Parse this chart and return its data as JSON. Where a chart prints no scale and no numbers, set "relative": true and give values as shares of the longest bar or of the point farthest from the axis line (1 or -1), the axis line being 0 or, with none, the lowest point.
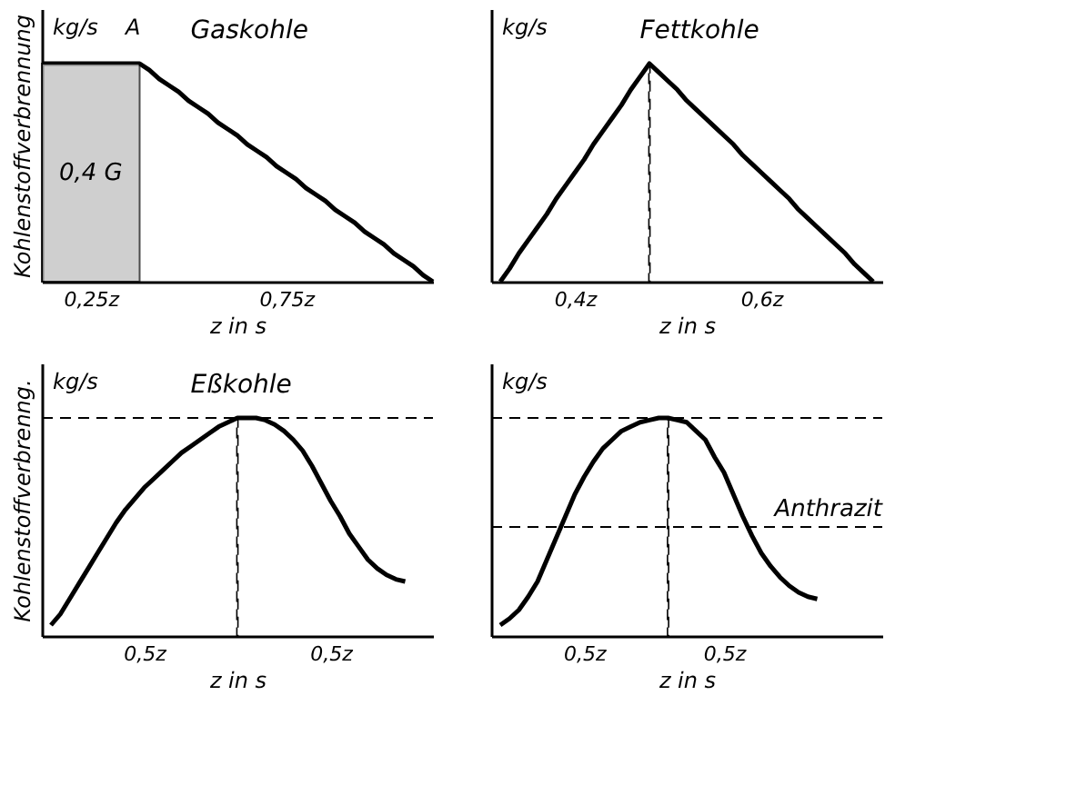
{
  "chart_data": [
    {
      "type": "line",
      "title": "Gaskohle",
      "ylabel": "Kohlenstoffverbrennung",
      "xlabel": "z in s",
      "relative": true,
      "grid": false,
      "categories": [
        null,
        null,
        null,
        null,
        null,
        "0,25z",
        null,
        null,
        null,
        null,
        null,
        null,
        null,
        null,
        null,
        null,
        null,
        null,
        null,
        null,
        null,
        null,
        null,
        null,
        null,
        "0,75z",
        null,
        null,
        null,
        null,
        null,
        null,
        null,
        null,
        null,
        null,
        null,
        null,
        null,
        null,
        null
      ],
      "series": [
        {
          "color": "#000000",
          "values": [
            1,
            1,
            1,
            1,
            1,
            1,
            1,
            1,
            1,
            1,
            1,
            0.97,
            0.93,
            0.9,
            0.87,
            0.83,
            0.8,
            0.77,
            0.73,
            0.7,
            0.67,
            0.63,
            0.6,
            0.57,
            0.53,
            0.5,
            0.47,
            0.43,
            0.4,
            0.37,
            0.33,
            0.3,
            0.27,
            0.23,
            0.2,
            0.17,
            0.13,
            0.1,
            0.07,
            0.03,
            0
          ]
        },
        {
          "type": "area",
          "name": "0,4 G",
          "color": "#bbbbbb",
          "values": [
            1,
            1,
            1,
            1,
            1,
            1,
            1,
            1,
            1,
            1,
            1,
            null,
            null,
            null,
            null,
            null,
            null,
            null,
            null,
            null,
            null,
            null,
            null,
            null,
            null,
            null,
            null,
            null,
            null,
            null,
            null,
            null,
            null,
            null,
            null,
            null,
            null,
            null,
            null,
            null,
            null
          ]
        }
      ],
      "annotations": [
        "kg/s",
        "A"
      ]
    },
    {
      "type": "line",
      "title": "Fettkohle",
      "xlabel": "z in s",
      "relative": true,
      "grid": false,
      "categories": [
        null,
        null,
        null,
        null,
        null,
        null,
        null,
        null,
        "0,4z",
        null,
        null,
        null,
        null,
        null,
        null,
        null,
        null,
        null,
        null,
        null,
        null,
        null,
        null,
        null,
        null,
        null,
        null,
        null,
        "0,6z",
        null,
        null,
        null,
        null,
        null,
        null,
        null,
        null,
        null,
        null,
        null,
        null
      ],
      "series": [
        {
          "color": "#000000",
          "values": [
            0,
            0.06,
            0.13,
            0.19,
            0.25,
            0.31,
            0.38,
            0.44,
            0.5,
            0.56,
            0.63,
            0.69,
            0.75,
            0.81,
            0.88,
            0.94,
            1,
            0.96,
            0.92,
            0.88,
            0.83,
            0.79,
            0.75,
            0.71,
            0.67,
            0.63,
            0.58,
            0.54,
            0.5,
            0.46,
            0.42,
            0.38,
            0.33,
            0.29,
            0.25,
            0.21,
            0.17,
            0.13,
            0.08,
            0.04,
            0
          ]
        },
        {
          "type": "bar",
          "line_style": "dashed",
          "color": "#000000",
          "values": [
            null,
            null,
            null,
            null,
            null,
            null,
            null,
            null,
            null,
            null,
            null,
            null,
            null,
            null,
            null,
            null,
            1,
            null,
            null,
            null,
            null,
            null,
            null,
            null,
            null,
            null,
            null,
            null,
            null,
            null,
            null,
            null,
            null,
            null,
            null,
            null,
            null,
            null,
            null,
            null,
            null
          ]
        }
      ],
      "annotations": [
        "kg/s"
      ]
    },
    {
      "type": "line",
      "title": "Eßkohle",
      "ylabel": "Kohlenstoffverbrenng.",
      "xlabel": "z in s",
      "relative": true,
      "grid": false,
      "categories": [
        null,
        null,
        null,
        null,
        null,
        null,
        null,
        null,
        null,
        null,
        "0,5z",
        null,
        null,
        null,
        null,
        null,
        null,
        null,
        null,
        null,
        null,
        null,
        null,
        null,
        null,
        null,
        null,
        null,
        null,
        null,
        "0,5z",
        null,
        null,
        null,
        null,
        null,
        null,
        null,
        null,
        null,
        null
      ],
      "series": [
        {
          "color": "#000000",
          "values": [
            0.05,
            0.1,
            0.17,
            0.24,
            0.31,
            0.38,
            0.45,
            0.52,
            0.58,
            0.63,
            0.68,
            0.72,
            0.76,
            0.8,
            0.84,
            0.87,
            0.9,
            0.93,
            0.96,
            0.98,
            1,
            1,
            1,
            0.99,
            0.97,
            0.94,
            0.9,
            0.85,
            0.78,
            0.7,
            0.62,
            0.55,
            0.47,
            0.41,
            0.35,
            0.31,
            0.28,
            0.26,
            0.25,
            null,
            null
          ]
        },
        {
          "type": "bar",
          "line_style": "dashed",
          "color": "#000000",
          "values": [
            null,
            null,
            null,
            null,
            null,
            null,
            null,
            null,
            null,
            null,
            null,
            null,
            null,
            null,
            null,
            null,
            null,
            null,
            null,
            null,
            1,
            null,
            null,
            null,
            null,
            null,
            null,
            null,
            null,
            null,
            null,
            null,
            null,
            null,
            null,
            null,
            null,
            null,
            null,
            null,
            null
          ]
        }
      ],
      "ref_lines": [
        {
          "axis": "y",
          "value": 1,
          "line_style": "dashed"
        }
      ],
      "annotations": [
        "kg/s"
      ]
    },
    {
      "type": "line",
      "xlabel": "z in s",
      "relative": true,
      "grid": false,
      "categories": [
        null,
        null,
        null,
        null,
        null,
        null,
        null,
        null,
        null,
        "0,5z",
        null,
        null,
        null,
        null,
        null,
        null,
        null,
        null,
        null,
        null,
        null,
        null,
        null,
        null,
        "0,5z",
        null,
        null,
        null,
        null,
        null,
        null,
        null,
        null,
        null,
        null,
        null,
        null,
        null,
        null,
        null,
        null
      ],
      "series": [
        {
          "color": "#000000",
          "values": [
            0.05,
            0.08,
            0.12,
            0.18,
            0.25,
            0.35,
            0.45,
            0.55,
            0.65,
            0.73,
            0.8,
            0.86,
            0.9,
            0.94,
            0.96,
            0.98,
            0.99,
            1,
            1,
            0.99,
            0.98,
            0.94,
            0.9,
            0.82,
            0.75,
            0.65,
            0.55,
            0.46,
            0.38,
            0.32,
            0.27,
            0.23,
            0.2,
            0.18,
            0.17,
            null,
            null,
            null,
            null,
            null,
            null
          ]
        },
        {
          "type": "bar",
          "line_style": "dashed",
          "color": "#000000",
          "values": [
            null,
            null,
            null,
            null,
            null,
            null,
            null,
            null,
            null,
            null,
            null,
            null,
            null,
            null,
            null,
            null,
            null,
            null,
            1,
            null,
            null,
            null,
            null,
            null,
            null,
            null,
            null,
            null,
            null,
            null,
            null,
            null,
            null,
            null,
            null,
            null,
            null,
            null,
            null,
            null,
            null
          ]
        }
      ],
      "ref_lines": [
        {
          "axis": "y",
          "value": 1,
          "line_style": "dashed"
        },
        {
          "axis": "y",
          "value": 0.5,
          "line_style": "dashed",
          "label": "Anthrazit"
        }
      ],
      "annotations": [
        "kg/s"
      ]
    }
  ]
}
